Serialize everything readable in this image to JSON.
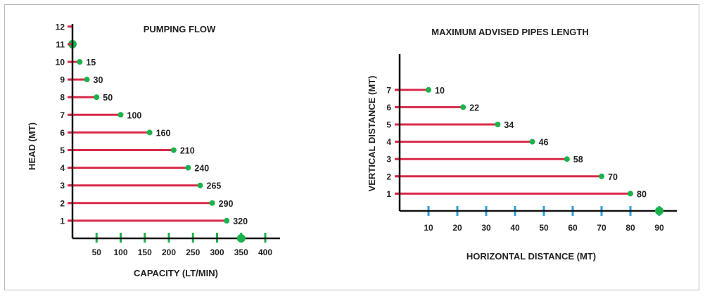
{
  "colors": {
    "bar": "#d9294a",
    "dot": "#1bb24b",
    "xtick_left": "#1bb24b",
    "xtick_right": "#29a3d8",
    "axis": "#111111",
    "frame": "#b9b9b9"
  },
  "chart_data": [
    {
      "type": "bar",
      "orientation": "horizontal",
      "title": "PUMPING FLOW",
      "xlabel": "CAPACITY (LT/MIN)",
      "ylabel": "HEAD (MT)",
      "xlim": [
        0,
        400
      ],
      "ylim": [
        0,
        12
      ],
      "x_ticks": [
        50,
        100,
        150,
        200,
        250,
        300,
        350,
        400
      ],
      "y_ticks": [
        1,
        2,
        3,
        4,
        5,
        6,
        7,
        8,
        9,
        10,
        11,
        12
      ],
      "categories": [
        1,
        2,
        3,
        4,
        5,
        6,
        7,
        8,
        9,
        10,
        11
      ],
      "values": [
        320,
        290,
        265,
        240,
        210,
        160,
        100,
        50,
        30,
        15,
        0
      ],
      "value_labels": [
        "320",
        "290",
        "265",
        "240",
        "210",
        "160",
        "100",
        "50",
        "30",
        "15",
        ""
      ],
      "markers": [
        {
          "x": 350,
          "y": 0
        }
      ],
      "grid": false,
      "legend": "none"
    },
    {
      "type": "bar",
      "orientation": "horizontal",
      "title": "MAXIMUM ADVISED PIPES LENGTH",
      "xlabel": "HORIZONTAL DISTANCE (MT)",
      "ylabel": "VERTICAL DISTANCE (MT)",
      "xlim": [
        0,
        90
      ],
      "ylim": [
        0,
        7
      ],
      "x_ticks": [
        10,
        20,
        30,
        40,
        50,
        60,
        70,
        80,
        90
      ],
      "y_ticks": [
        1,
        2,
        3,
        4,
        5,
        6,
        7
      ],
      "categories": [
        1,
        2,
        3,
        4,
        5,
        6,
        7
      ],
      "values": [
        80,
        70,
        58,
        46,
        34,
        22,
        10
      ],
      "value_labels": [
        "80",
        "70",
        "58",
        "46",
        "34",
        "22",
        "10"
      ],
      "markers": [
        {
          "x": 90,
          "y": 0
        }
      ],
      "grid": false,
      "legend": "none"
    }
  ]
}
